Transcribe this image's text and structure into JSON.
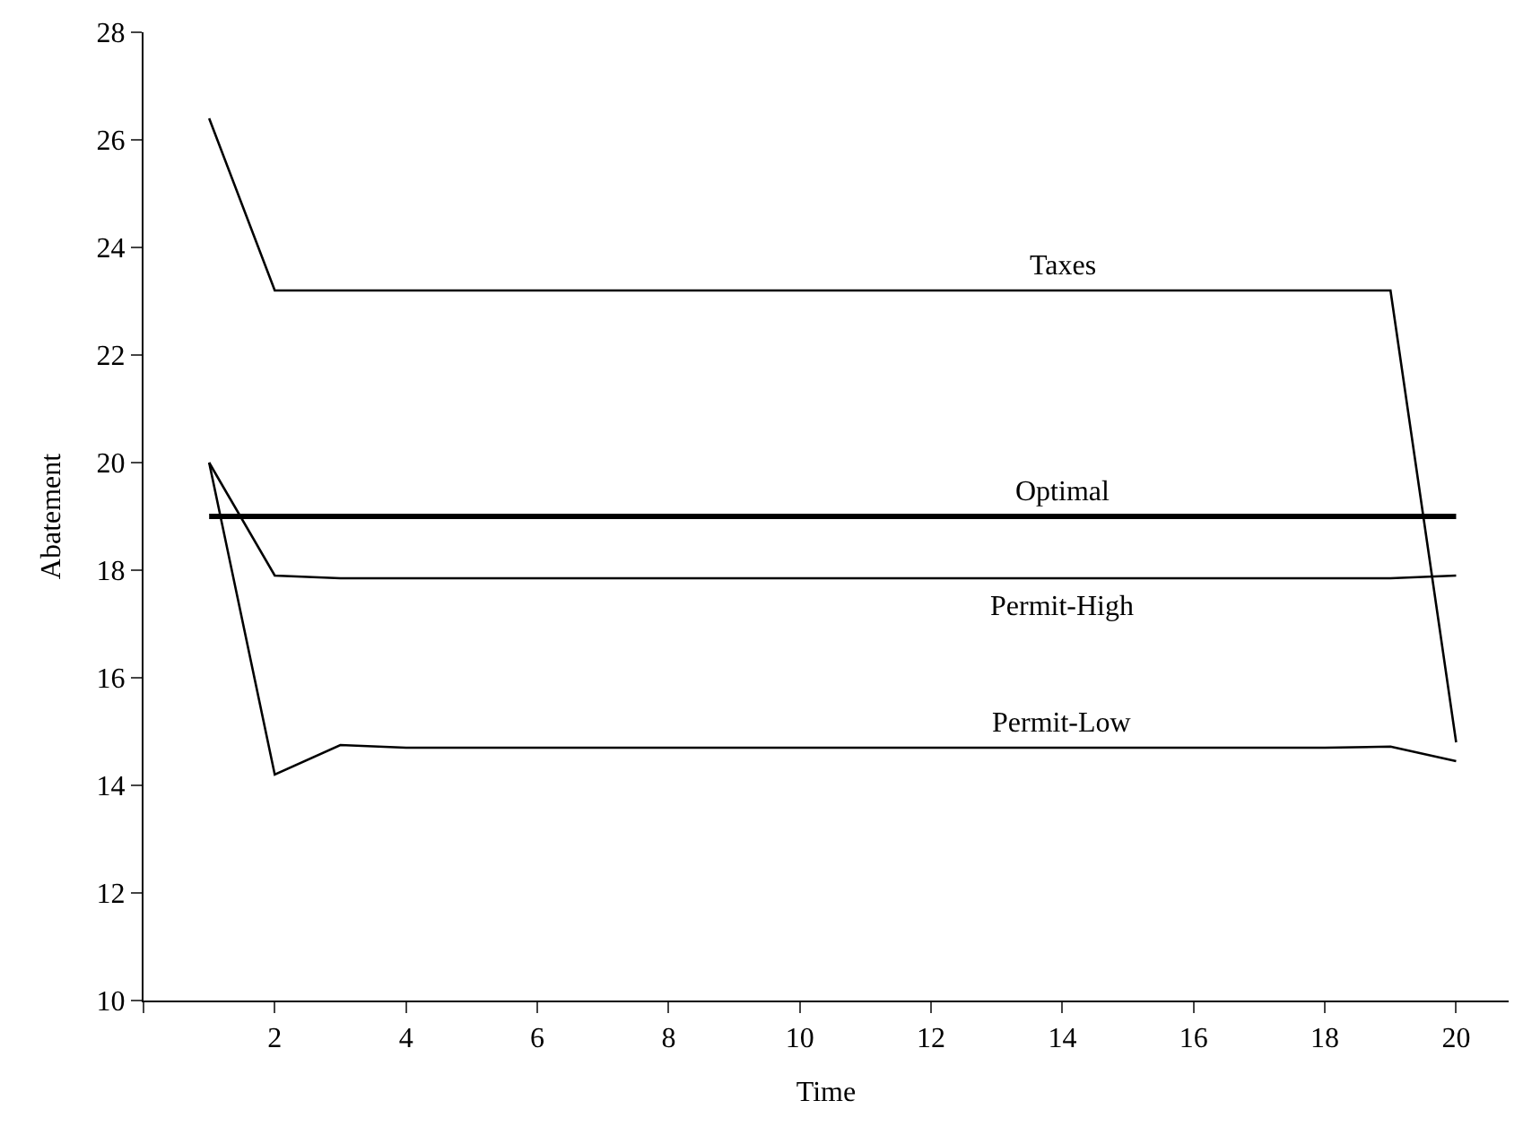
{
  "chart_data": {
    "type": "line",
    "xlabel": "Time",
    "ylabel": "Abatement",
    "x": [
      1,
      2,
      3,
      4,
      5,
      6,
      7,
      8,
      9,
      10,
      11,
      12,
      13,
      14,
      15,
      16,
      17,
      18,
      19,
      20
    ],
    "xlim": [
      0,
      20.8
    ],
    "xticks": [
      {
        "value": 0,
        "label": null
      },
      2,
      4,
      6,
      8,
      10,
      12,
      14,
      16,
      18,
      20
    ],
    "ylim": [
      10,
      28
    ],
    "yticks": [
      10,
      12,
      14,
      16,
      18,
      20,
      22,
      24,
      26,
      28
    ],
    "legend": false,
    "marker": "none",
    "line_style": "solid",
    "series": [
      {
        "name": "Taxes",
        "color": "#000000",
        "values": [
          26.4,
          23.2,
          23.2,
          23.2,
          23.2,
          23.2,
          23.2,
          23.2,
          23.2,
          23.2,
          23.2,
          23.2,
          23.2,
          23.2,
          23.2,
          23.2,
          23.2,
          23.2,
          23.2,
          14.8
        ]
      },
      {
        "name": "Optimal",
        "color": "#000000",
        "values": [
          19,
          19,
          19,
          19,
          19,
          19,
          19,
          19,
          19,
          19,
          19,
          19,
          19,
          19,
          19,
          19,
          19,
          19,
          19,
          19
        ]
      },
      {
        "name": "Permit-High",
        "color": "#000000",
        "values": [
          20,
          17.9,
          17.85,
          17.85,
          17.85,
          17.85,
          17.85,
          17.85,
          17.85,
          17.85,
          17.85,
          17.85,
          17.85,
          17.85,
          17.85,
          17.85,
          17.85,
          17.85,
          17.85,
          17.9
        ]
      },
      {
        "name": "Permit-Low",
        "color": "#000000",
        "values": [
          20,
          14.2,
          14.75,
          14.7,
          14.7,
          14.7,
          14.7,
          14.7,
          14.7,
          14.7,
          14.7,
          14.7,
          14.7,
          14.7,
          14.7,
          14.7,
          14.7,
          14.7,
          14.72,
          14.45
        ]
      }
    ]
  }
}
